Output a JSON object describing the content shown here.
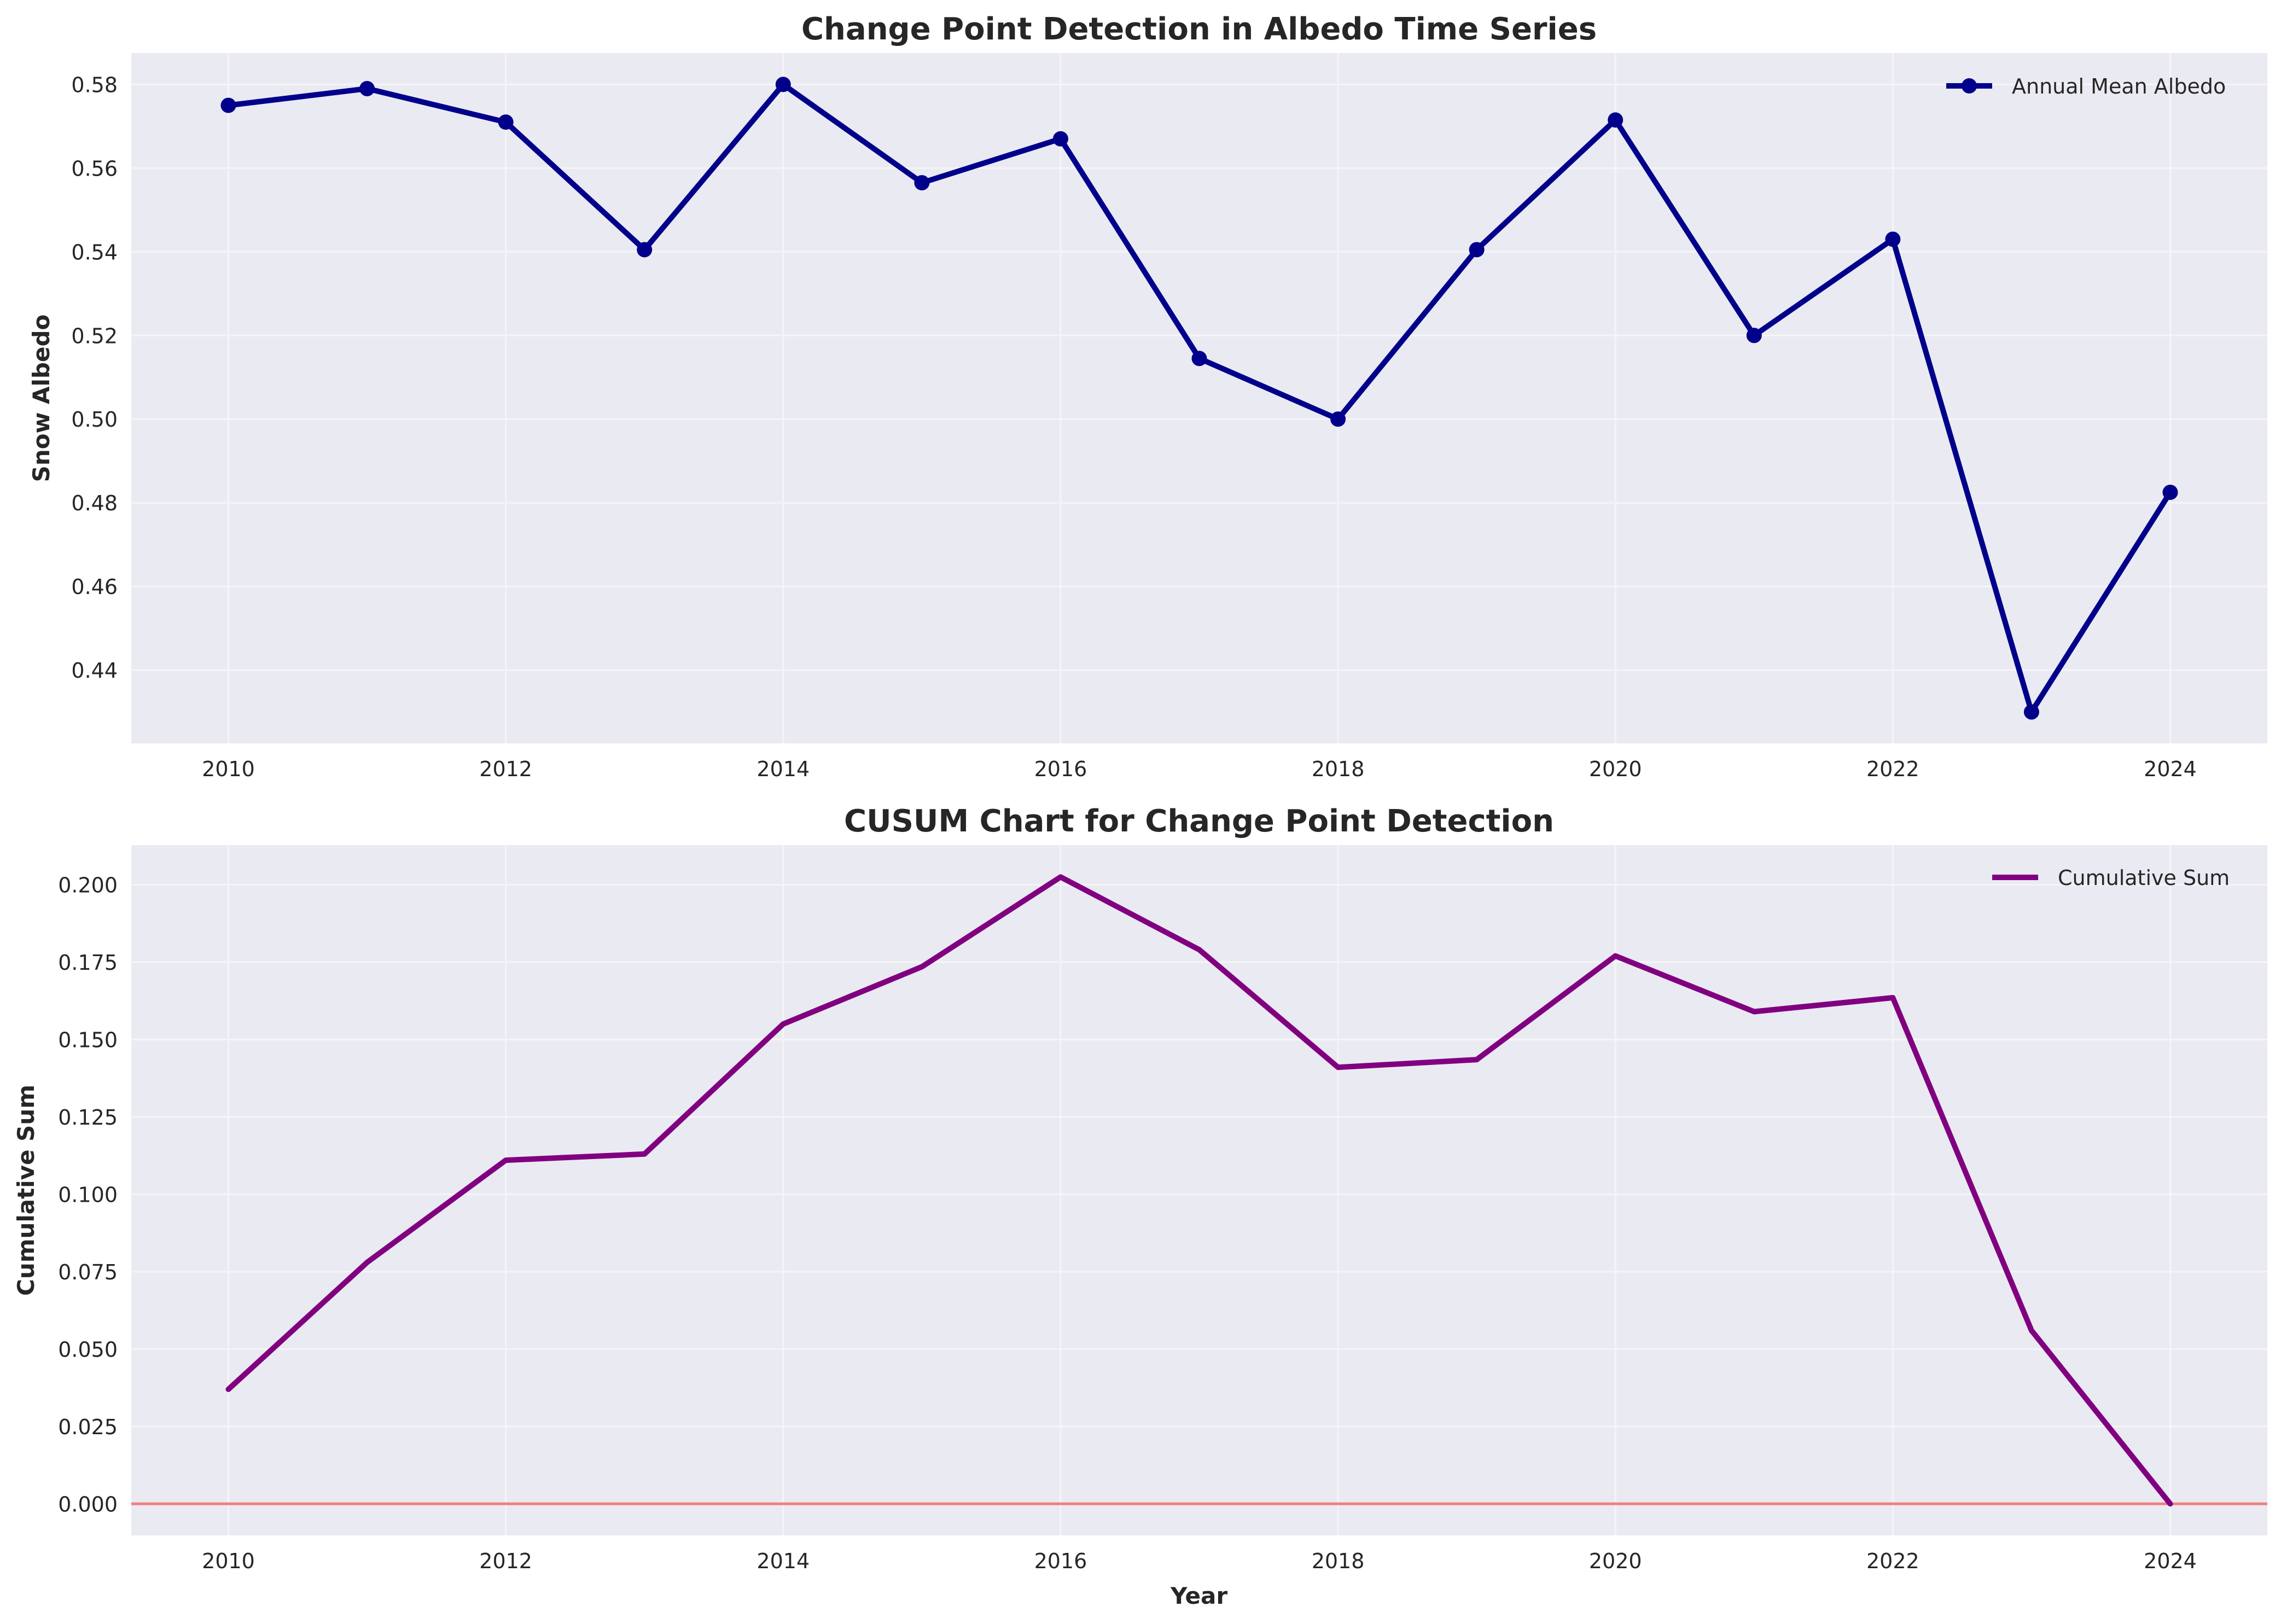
{
  "chart_data": [
    {
      "type": "line",
      "title": "Change Point Detection in Albedo Time Series",
      "xlabel": "",
      "ylabel": "Snow Albedo",
      "x": [
        2010,
        2011,
        2012,
        2013,
        2014,
        2015,
        2016,
        2017,
        2018,
        2019,
        2020,
        2021,
        2022,
        2023,
        2024
      ],
      "xlim": [
        2009.3,
        2024.7
      ],
      "ylim": [
        0.4225,
        0.5875
      ],
      "xticks": [
        2010,
        2012,
        2014,
        2016,
        2018,
        2020,
        2022,
        2024
      ],
      "yticks": [
        0.44,
        0.46,
        0.48,
        0.5,
        0.52,
        0.54,
        0.56,
        0.58
      ],
      "ytick_decimals": 2,
      "grid": true,
      "legend_position": "top-right",
      "series": [
        {
          "name": "Annual Mean Albedo",
          "color": "#00008b",
          "markers": true,
          "values": [
            0.575,
            0.579,
            0.571,
            0.5405,
            0.58,
            0.5565,
            0.567,
            0.5145,
            0.5,
            0.5405,
            0.5715,
            0.52,
            0.543,
            0.43,
            0.4825
          ]
        }
      ]
    },
    {
      "type": "line",
      "title": "CUSUM Chart for Change Point Detection",
      "xlabel": "Year",
      "ylabel": "Cumulative Sum",
      "x": [
        2010,
        2011,
        2012,
        2013,
        2014,
        2015,
        2016,
        2017,
        2018,
        2019,
        2020,
        2021,
        2022,
        2023,
        2024
      ],
      "xlim": [
        2009.3,
        2024.7
      ],
      "ylim": [
        -0.0102,
        0.2128
      ],
      "xticks": [
        2010,
        2012,
        2014,
        2016,
        2018,
        2020,
        2022,
        2024
      ],
      "yticks": [
        0.0,
        0.025,
        0.05,
        0.075,
        0.1,
        0.125,
        0.15,
        0.175,
        0.2
      ],
      "ytick_decimals": 3,
      "grid": true,
      "legend_position": "top-right",
      "reference_line": {
        "y": 0,
        "color": "#f08080"
      },
      "series": [
        {
          "name": "Cumulative Sum",
          "color": "#800080",
          "markers": false,
          "values": [
            0.037,
            0.078,
            0.111,
            0.113,
            0.155,
            0.1735,
            0.2025,
            0.179,
            0.141,
            0.1435,
            0.177,
            0.159,
            0.1635,
            0.056,
            0.0
          ]
        }
      ]
    }
  ],
  "colors": {
    "axes_background": "#eaeaf2",
    "grid": "#f5f5f8",
    "text": "#262626"
  }
}
